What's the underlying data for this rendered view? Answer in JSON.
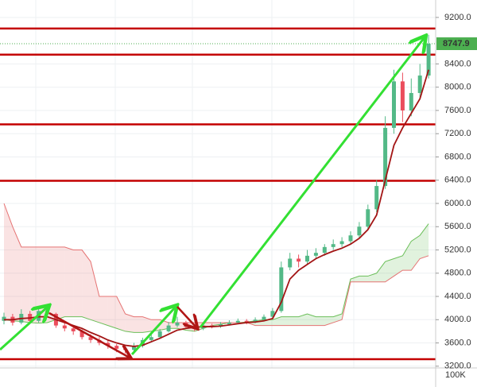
{
  "chart_data": {
    "type": "candlestick",
    "open": [
      3980,
      4050,
      3950,
      4100,
      3980,
      4150,
      4100,
      3900,
      3850,
      3800,
      3700,
      3650,
      3600,
      3550,
      3500,
      3480,
      3550,
      3650,
      3700,
      3800,
      3900,
      3950,
      3880,
      3850,
      3900,
      3880,
      3920,
      3950,
      3980,
      3960,
      4000,
      4050,
      4150,
      4900,
      5050,
      5000,
      5100,
      5150,
      5250,
      5300,
      5350,
      5450,
      5600,
      5900,
      6300,
      7300,
      8100,
      7600,
      7900,
      8200
    ],
    "high": [
      4120,
      4100,
      4180,
      4150,
      4220,
      4200,
      4120,
      3950,
      3900,
      3830,
      3750,
      3700,
      3640,
      3580,
      3540,
      3600,
      3690,
      3760,
      3840,
      3960,
      4050,
      3980,
      3920,
      3940,
      3930,
      3960,
      3990,
      4020,
      4010,
      4040,
      4090,
      4200,
      5000,
      5150,
      5120,
      5200,
      5230,
      5300,
      5380,
      5420,
      5520,
      5680,
      5980,
      6400,
      7500,
      8300,
      8250,
      8150,
      8400,
      8900
    ],
    "low": [
      3920,
      3900,
      3920,
      3940,
      3950,
      4050,
      3860,
      3800,
      3740,
      3660,
      3600,
      3560,
      3500,
      3440,
      3420,
      3450,
      3520,
      3620,
      3680,
      3780,
      3870,
      3840,
      3800,
      3820,
      3850,
      3860,
      3900,
      3930,
      3920,
      3940,
      3980,
      4020,
      4120,
      4850,
      4900,
      4960,
      5050,
      5100,
      5200,
      5250,
      5300,
      5400,
      5550,
      5850,
      6250,
      7200,
      7400,
      7500,
      7800,
      8150
    ],
    "close": [
      4050,
      3950,
      4100,
      3980,
      4150,
      4100,
      3900,
      3850,
      3800,
      3700,
      3650,
      3600,
      3550,
      3500,
      3480,
      3550,
      3650,
      3700,
      3800,
      3900,
      3950,
      3880,
      3850,
      3900,
      3880,
      3920,
      3950,
      3980,
      3960,
      4000,
      4050,
      4150,
      4900,
      5050,
      5000,
      5100,
      5150,
      5250,
      5300,
      5350,
      5450,
      5600,
      5900,
      6300,
      7300,
      8100,
      7600,
      7900,
      8200,
      8747.9
    ],
    "base_line": [
      4000,
      4000,
      4020,
      4030,
      4050,
      4050,
      4000,
      3950,
      3900,
      3850,
      3780,
      3720,
      3650,
      3600,
      3560,
      3540,
      3560,
      3620,
      3680,
      3750,
      3820,
      3850,
      3870,
      3880,
      3880,
      3890,
      3910,
      3930,
      3950,
      3960,
      3980,
      4020,
      4300,
      4700,
      4850,
      4950,
      5050,
      5120,
      5180,
      5230,
      5300,
      5400,
      5550,
      5800,
      6400,
      7000,
      7300,
      7550,
      7800,
      8300
    ],
    "span_a": [
      4000,
      3980,
      3970,
      3950,
      3940,
      3950,
      4000,
      4050,
      4050,
      4050,
      4000,
      3950,
      3900,
      3850,
      3800,
      3780,
      3780,
      3800,
      3820,
      3850,
      3850,
      3820,
      3800,
      3850,
      3900,
      3920,
      3950,
      3950,
      3960,
      3980,
      4000,
      4000,
      4050,
      4050,
      4050,
      4100,
      4050,
      4050,
      4050,
      4100,
      4700,
      4750,
      4750,
      4800,
      5000,
      5050,
      5100,
      5350,
      5450,
      5650
    ],
    "span_b": [
      6000,
      5600,
      5250,
      5250,
      5250,
      5250,
      5250,
      5250,
      5200,
      5200,
      5000,
      4400,
      4400,
      4400,
      4100,
      4050,
      4050,
      4000,
      4000,
      3950,
      3950,
      3950,
      3950,
      3950,
      3950,
      3950,
      3950,
      3950,
      3950,
      3900,
      3900,
      3900,
      3900,
      3900,
      3900,
      3900,
      3900,
      3900,
      3950,
      4000,
      4650,
      4650,
      4650,
      4650,
      4650,
      4750,
      4850,
      4850,
      5050,
      5100
    ],
    "up_color": "#53b987",
    "down_color": "#eb4d5c",
    "base_line_color": "#a31515",
    "span_a_color": "#6bbf59",
    "span_b_color": "#e57373",
    "levels": [
      9010,
      8560,
      7360,
      6390,
      3320
    ],
    "level_color": "#c40000",
    "last_price_color": "#4caf50",
    "ylim": [
      3170,
      9500
    ],
    "yticks": [
      {
        "value": 3200,
        "label": "3200.0"
      },
      {
        "value": 3600,
        "label": "3600.0"
      },
      {
        "value": 4000,
        "label": "4000.0"
      },
      {
        "value": 4400,
        "label": "4400.0"
      },
      {
        "value": 4800,
        "label": "4800.0"
      },
      {
        "value": 5200,
        "label": "5200.0"
      },
      {
        "value": 5600,
        "label": "5600.0"
      },
      {
        "value": 6000,
        "label": "6000.0"
      },
      {
        "value": 6400,
        "label": "6400.0"
      },
      {
        "value": 6800,
        "label": "6800.0"
      },
      {
        "value": 7200,
        "label": "7200.0"
      },
      {
        "value": 7600,
        "label": "7600.0"
      },
      {
        "value": 8000,
        "label": "8000.0"
      },
      {
        "value": 8400,
        "label": "8400.0"
      },
      {
        "value": 9200,
        "label": "9200.0"
      }
    ],
    "grid": true,
    "volume_axis_label": "100K"
  }
}
